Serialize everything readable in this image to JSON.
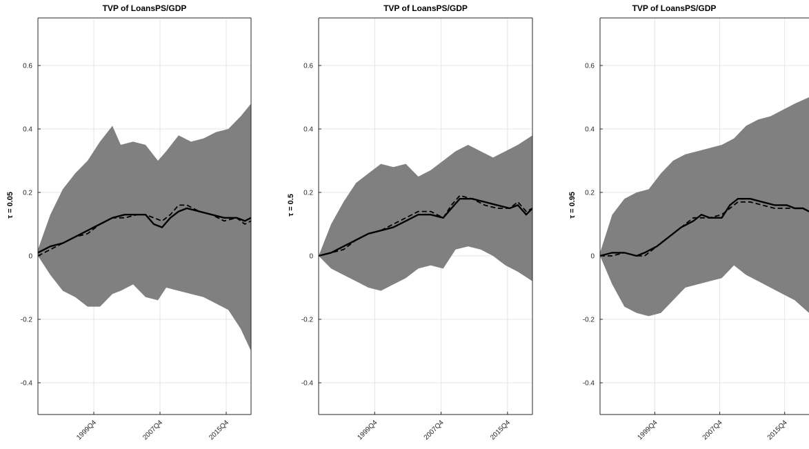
{
  "chart_data": [
    {
      "type": "area",
      "title": "TVP of LoansPS/GDP",
      "ylabel": "τ = 0.05",
      "ylim": [
        -0.5,
        0.75
      ],
      "yticks": [
        -0.4,
        -0.2,
        0,
        0.2,
        0.4,
        0.6
      ],
      "ytick_labels": [
        "-0.4",
        "-0.2",
        "0",
        "0.2",
        "0.4",
        "0.6"
      ],
      "xlim": [
        1993.0,
        2018.75
      ],
      "xticks": [
        1999.75,
        2007.75,
        2015.75
      ],
      "xtick_labels": [
        "1999Q4",
        "2007Q4",
        "2015Q4"
      ],
      "grid": true,
      "series": [
        {
          "role": "band",
          "x": [
            1993.0,
            1994.5,
            1996.0,
            1997.5,
            1999.0,
            2000.5,
            2002.0,
            2003.0,
            2004.5,
            2006.0,
            2007.5,
            2008.5,
            2010.0,
            2011.5,
            2013.0,
            2014.5,
            2016.0,
            2017.5,
            2018.75
          ],
          "upper": [
            0.02,
            0.13,
            0.21,
            0.26,
            0.3,
            0.36,
            0.41,
            0.35,
            0.36,
            0.35,
            0.3,
            0.33,
            0.38,
            0.36,
            0.37,
            0.39,
            0.4,
            0.44,
            0.48
          ],
          "lower": [
            0.0,
            -0.06,
            -0.11,
            -0.13,
            -0.16,
            -0.16,
            -0.12,
            -0.11,
            -0.09,
            -0.13,
            -0.14,
            -0.1,
            -0.11,
            -0.12,
            -0.13,
            -0.15,
            -0.17,
            -0.23,
            -0.3
          ]
        },
        {
          "role": "solid",
          "x": [
            1993.0,
            1994.5,
            1996.0,
            1997.5,
            1999.0,
            2000.5,
            2002.0,
            2003.5,
            2005.0,
            2006.0,
            2007.0,
            2008.0,
            2009.0,
            2010.0,
            2011.0,
            2012.5,
            2014.0,
            2015.5,
            2017.0,
            2018.0,
            2018.75
          ],
          "y": [
            0.01,
            0.03,
            0.04,
            0.06,
            0.08,
            0.1,
            0.12,
            0.13,
            0.13,
            0.13,
            0.1,
            0.09,
            0.12,
            0.14,
            0.15,
            0.14,
            0.13,
            0.12,
            0.12,
            0.11,
            0.12
          ]
        },
        {
          "role": "dashed",
          "x": [
            1993.0,
            1994.5,
            1996.0,
            1997.5,
            1999.0,
            2000.5,
            2002.0,
            2003.5,
            2005.0,
            2006.0,
            2007.0,
            2008.0,
            2009.0,
            2010.0,
            2011.0,
            2012.5,
            2014.0,
            2015.5,
            2017.0,
            2018.0,
            2018.75
          ],
          "y": [
            0.0,
            0.02,
            0.04,
            0.06,
            0.07,
            0.1,
            0.12,
            0.12,
            0.13,
            0.13,
            0.12,
            0.11,
            0.13,
            0.16,
            0.16,
            0.14,
            0.13,
            0.11,
            0.12,
            0.1,
            0.11
          ]
        }
      ]
    },
    {
      "type": "area",
      "title": "TVP of LoansPS/GDP",
      "ylabel": "τ = 0.5",
      "ylim": [
        -0.5,
        0.75
      ],
      "yticks": [
        -0.4,
        -0.2,
        0,
        0.2,
        0.4,
        0.6
      ],
      "ytick_labels": [
        "-0.4",
        "-0.2",
        "0",
        "0.2",
        "0.4",
        "0.6"
      ],
      "xlim": [
        1993.0,
        2018.75
      ],
      "xticks": [
        1999.75,
        2007.75,
        2015.75
      ],
      "xtick_labels": [
        "1999Q4",
        "2007Q4",
        "2015Q4"
      ],
      "grid": true,
      "series": [
        {
          "role": "band",
          "x": [
            1993.0,
            1994.5,
            1996.0,
            1997.5,
            1999.0,
            2000.5,
            2002.0,
            2003.5,
            2005.0,
            2006.5,
            2008.0,
            2009.5,
            2011.0,
            2012.5,
            2014.0,
            2015.5,
            2017.0,
            2018.75
          ],
          "upper": [
            0.0,
            0.1,
            0.17,
            0.23,
            0.26,
            0.29,
            0.28,
            0.29,
            0.25,
            0.27,
            0.3,
            0.33,
            0.35,
            0.33,
            0.31,
            0.33,
            0.35,
            0.38
          ],
          "lower": [
            0.0,
            -0.04,
            -0.06,
            -0.08,
            -0.1,
            -0.11,
            -0.09,
            -0.07,
            -0.04,
            -0.03,
            -0.04,
            0.02,
            0.03,
            0.02,
            0.0,
            -0.03,
            -0.05,
            -0.08
          ]
        },
        {
          "role": "solid",
          "x": [
            1993.0,
            1994.5,
            1996.0,
            1997.5,
            1999.0,
            2000.5,
            2002.0,
            2003.5,
            2005.0,
            2006.5,
            2008.0,
            2009.0,
            2010.0,
            2011.5,
            2013.0,
            2014.5,
            2016.0,
            2017.0,
            2018.0,
            2018.75
          ],
          "y": [
            0.0,
            0.01,
            0.03,
            0.05,
            0.07,
            0.08,
            0.09,
            0.11,
            0.13,
            0.13,
            0.12,
            0.15,
            0.18,
            0.18,
            0.17,
            0.16,
            0.15,
            0.16,
            0.13,
            0.15
          ]
        },
        {
          "role": "dashed",
          "x": [
            1993.0,
            1994.5,
            1996.0,
            1997.5,
            1999.0,
            2000.5,
            2002.0,
            2003.5,
            2005.0,
            2006.5,
            2008.0,
            2009.0,
            2010.0,
            2011.5,
            2013.0,
            2014.5,
            2016.0,
            2017.0,
            2018.0,
            2018.75
          ],
          "y": [
            0.0,
            0.01,
            0.02,
            0.05,
            0.07,
            0.08,
            0.1,
            0.12,
            0.14,
            0.14,
            0.12,
            0.16,
            0.19,
            0.18,
            0.16,
            0.15,
            0.15,
            0.17,
            0.14,
            0.15
          ]
        }
      ]
    },
    {
      "type": "area",
      "title": "TVP of LoansPS/GDP",
      "ylabel": "τ = 0.95",
      "ylim": [
        -0.5,
        0.75
      ],
      "yticks": [
        -0.4,
        -0.2,
        0,
        0.2,
        0.4,
        0.6
      ],
      "ytick_labels": [
        "-0.4",
        "-0.2",
        "0",
        "0.2",
        "0.4",
        "0.6"
      ],
      "xlim": [
        1993.0,
        2018.75
      ],
      "xticks": [
        1999.75,
        2007.75,
        2015.75
      ],
      "xtick_labels": [
        "1999Q4",
        "2007Q4",
        "2015Q4"
      ],
      "grid": true,
      "series": [
        {
          "role": "band",
          "x": [
            1993.0,
            1994.5,
            1996.0,
            1997.5,
            1999.0,
            2000.5,
            2002.0,
            2003.5,
            2005.0,
            2006.5,
            2008.0,
            2009.5,
            2011.0,
            2012.5,
            2014.0,
            2015.5,
            2017.0,
            2018.75
          ],
          "upper": [
            0.01,
            0.13,
            0.18,
            0.2,
            0.21,
            0.26,
            0.3,
            0.32,
            0.33,
            0.34,
            0.35,
            0.37,
            0.41,
            0.43,
            0.44,
            0.46,
            0.48,
            0.5
          ],
          "lower": [
            0.0,
            -0.09,
            -0.16,
            -0.18,
            -0.19,
            -0.18,
            -0.14,
            -0.1,
            -0.09,
            -0.08,
            -0.07,
            -0.03,
            -0.06,
            -0.08,
            -0.1,
            -0.12,
            -0.14,
            -0.18
          ]
        },
        {
          "role": "solid",
          "x": [
            1993.0,
            1994.5,
            1996.0,
            1997.5,
            1998.5,
            2000.0,
            2001.5,
            2003.0,
            2004.5,
            2005.5,
            2006.5,
            2008.0,
            2009.0,
            2010.0,
            2011.5,
            2013.0,
            2014.5,
            2016.0,
            2017.0,
            2018.0,
            2018.75
          ],
          "y": [
            0.0,
            0.01,
            0.01,
            0.0,
            0.01,
            0.03,
            0.06,
            0.09,
            0.11,
            0.13,
            0.12,
            0.12,
            0.16,
            0.18,
            0.18,
            0.17,
            0.16,
            0.16,
            0.15,
            0.15,
            0.14
          ]
        },
        {
          "role": "dashed",
          "x": [
            1993.0,
            1994.5,
            1996.0,
            1997.5,
            1998.5,
            2000.0,
            2001.5,
            2003.0,
            2004.5,
            2005.5,
            2006.5,
            2008.0,
            2009.0,
            2010.0,
            2011.5,
            2013.0,
            2014.5,
            2016.0,
            2017.0,
            2018.0,
            2018.75
          ],
          "y": [
            0.0,
            0.0,
            0.01,
            0.0,
            0.0,
            0.03,
            0.06,
            0.09,
            0.12,
            0.12,
            0.12,
            0.13,
            0.15,
            0.17,
            0.17,
            0.16,
            0.15,
            0.15,
            0.15,
            0.15,
            0.14
          ]
        }
      ]
    }
  ]
}
